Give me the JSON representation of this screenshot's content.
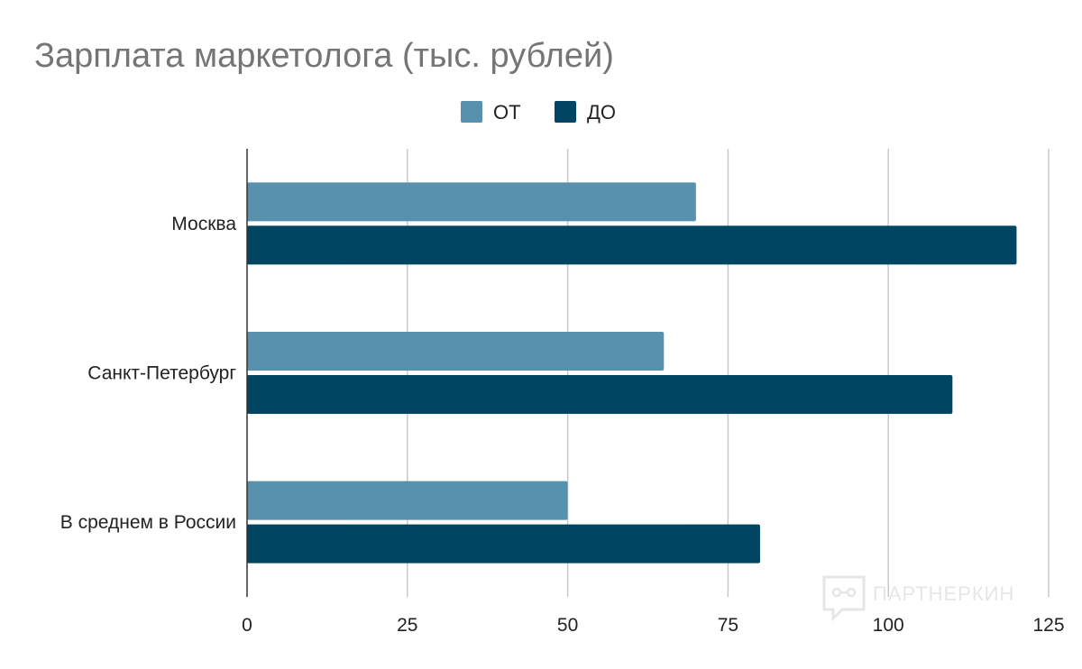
{
  "chart_data": {
    "type": "bar",
    "orientation": "horizontal",
    "title": "Зарплата маркетолога (тыс. рублей)",
    "categories": [
      "Москва",
      "Санкт-Петербург",
      "В среднем в России"
    ],
    "series": [
      {
        "name": "ОТ",
        "values": [
          70,
          65,
          50
        ],
        "color": "#5891ad"
      },
      {
        "name": "ДО",
        "values": [
          120,
          110,
          80
        ],
        "color": "#004561"
      }
    ],
    "xlabel": "",
    "ylabel": "",
    "xlim": [
      0,
      125
    ],
    "x_ticks": [
      "0",
      "25",
      "50",
      "75",
      "100",
      "125"
    ],
    "grid": true,
    "legend_position": "top-center"
  },
  "watermark": {
    "text": "ПАРТНЕРКИН",
    "icon": "partnerkin-logo-icon"
  }
}
